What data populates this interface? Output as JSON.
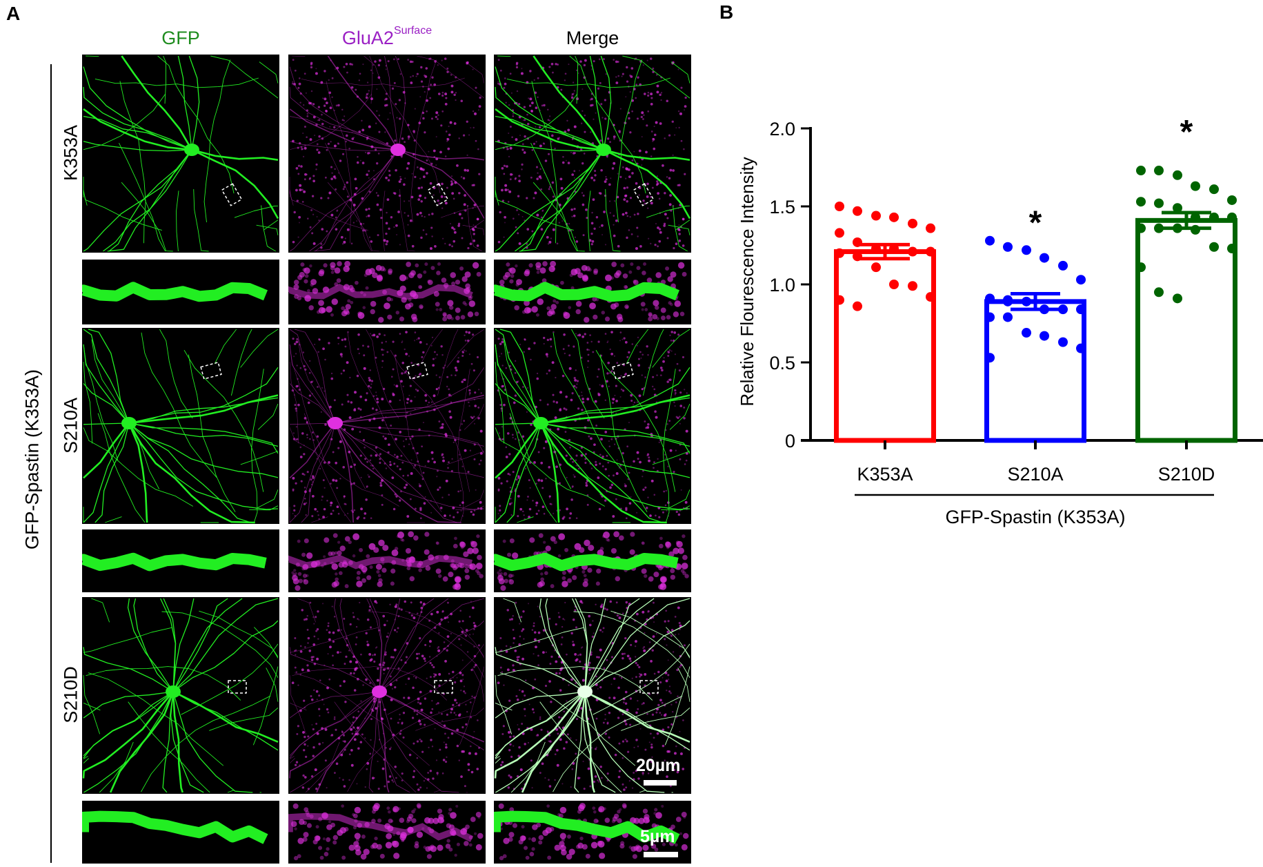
{
  "panel_a": {
    "label": "A",
    "columns": {
      "gfp": "GFP",
      "glua2": "GluA2",
      "glua2_superscript": "Surface",
      "merge": "Merge"
    },
    "rows": [
      "K353A",
      "S210A",
      "S210D"
    ],
    "group_label": "GFP-Spastin (K353A)",
    "scale_bar_large": "20µm",
    "scale_bar_small": "5µm",
    "colors": {
      "gfp": "#1e8c1e",
      "glua2": "#9a1fc4",
      "merge": "#000000",
      "gfp_signal": "#22ee22",
      "glua2_signal": "#e030e0"
    }
  },
  "panel_b": {
    "label": "B"
  },
  "chart_data": {
    "type": "bar",
    "title": "",
    "xlabel": "GFP-Spastin (K353A)",
    "ylabel": "Relative Flourescence Intensity",
    "ylim": [
      0,
      2.0
    ],
    "yticks": [
      0,
      0.5,
      1.0,
      1.5,
      2.0
    ],
    "ytick_labels": [
      "0",
      "0.5",
      "1.0",
      "1.5",
      "2.0"
    ],
    "categories": [
      "K353A",
      "S210A",
      "S210D"
    ],
    "values": [
      1.21,
      0.89,
      1.41
    ],
    "errors": [
      0.045,
      0.05,
      0.05
    ],
    "significance": [
      "",
      "*",
      "*"
    ],
    "colors": [
      "#ff0000",
      "#0000ff",
      "#006400"
    ],
    "points": [
      [
        1.5,
        1.47,
        1.44,
        1.43,
        1.39,
        1.36,
        1.33,
        1.27,
        1.23,
        1.23,
        1.21,
        1.21,
        1.2,
        1.18,
        1.11,
        1.0,
        0.99,
        0.92,
        0.9,
        0.86
      ],
      [
        1.28,
        1.24,
        1.22,
        1.17,
        1.12,
        1.03,
        0.91,
        0.9,
        0.89,
        0.84,
        0.84,
        0.84,
        0.79,
        0.79,
        0.69,
        0.67,
        0.63,
        0.59,
        0.53,
        0.89
      ],
      [
        1.73,
        1.73,
        1.7,
        1.63,
        1.61,
        1.54,
        1.53,
        1.52,
        1.49,
        1.43,
        1.43,
        1.43,
        1.36,
        1.36,
        1.36,
        1.35,
        1.24,
        1.23,
        1.11,
        0.95,
        0.91
      ]
    ],
    "grid": false,
    "legend": "none"
  }
}
